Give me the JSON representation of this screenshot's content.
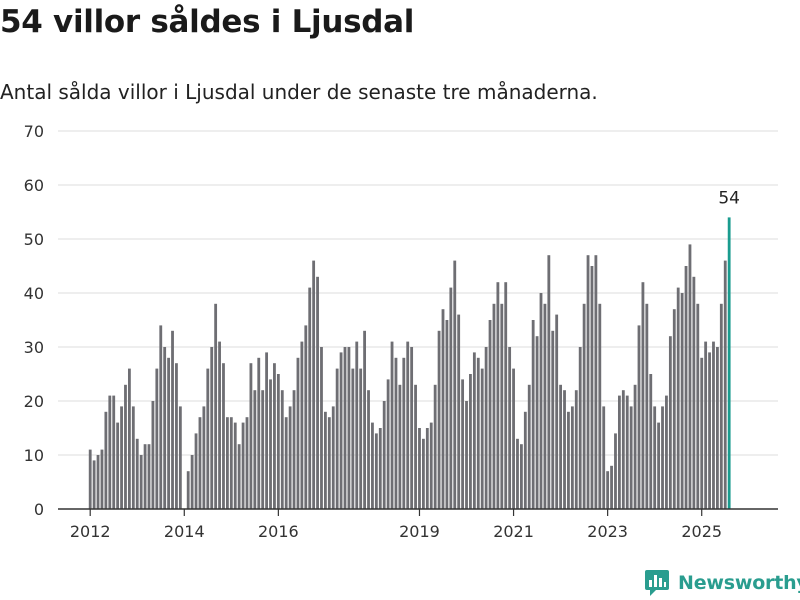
{
  "title": "54 villor såldes i Ljusdal",
  "subtitle": "Antal sålda villor i Ljusdal under de senaste tre månaderna.",
  "brand": {
    "name": "Newsworthy",
    "icon": "newsworthy-logo-icon"
  },
  "colors": {
    "bar": "#6e6e73",
    "highlight": "#1a9c8f",
    "grid": "#dddddd",
    "axis": "#333333",
    "brand": "#2a9d8f"
  },
  "chart_data": {
    "type": "bar",
    "title": "",
    "xlabel": "",
    "ylabel": "",
    "ylim": [
      0,
      70
    ],
    "yticks": [
      0,
      10,
      20,
      30,
      40,
      50,
      60,
      70
    ],
    "xtick_labels": [
      "2012",
      "2014",
      "2016",
      "2019",
      "2021",
      "2023",
      "2025"
    ],
    "grid": true,
    "start": "2012-01",
    "end": "2025-09",
    "values": [
      11,
      9,
      10,
      11,
      18,
      21,
      21,
      16,
      19,
      23,
      26,
      19,
      13,
      10,
      12,
      12,
      20,
      26,
      34,
      30,
      28,
      33,
      27,
      19,
      0,
      7,
      10,
      14,
      17,
      19,
      26,
      30,
      38,
      31,
      27,
      17,
      17,
      16,
      12,
      16,
      17,
      27,
      22,
      28,
      22,
      29,
      24,
      27,
      25,
      22,
      17,
      19,
      22,
      28,
      31,
      34,
      41,
      46,
      43,
      30,
      18,
      17,
      19,
      26,
      29,
      30,
      30,
      26,
      31,
      26,
      33,
      22,
      16,
      14,
      15,
      20,
      24,
      31,
      28,
      23,
      28,
      31,
      30,
      23,
      15,
      13,
      15,
      16,
      23,
      33,
      37,
      35,
      41,
      46,
      36,
      24,
      20,
      25,
      29,
      28,
      26,
      30,
      35,
      38,
      42,
      38,
      42,
      30,
      26,
      13,
      12,
      18,
      23,
      35,
      32,
      40,
      38,
      47,
      33,
      36,
      23,
      22,
      18,
      19,
      22,
      30,
      38,
      47,
      45,
      47,
      38,
      19,
      7,
      8,
      14,
      21,
      22,
      21,
      19,
      23,
      34,
      42,
      38,
      25,
      19,
      16,
      19,
      21,
      32,
      37,
      41,
      40,
      45,
      49,
      43,
      38,
      28,
      31,
      29,
      31,
      30,
      38,
      46,
      54
    ],
    "highlight": {
      "label": "54",
      "value": 54
    }
  }
}
